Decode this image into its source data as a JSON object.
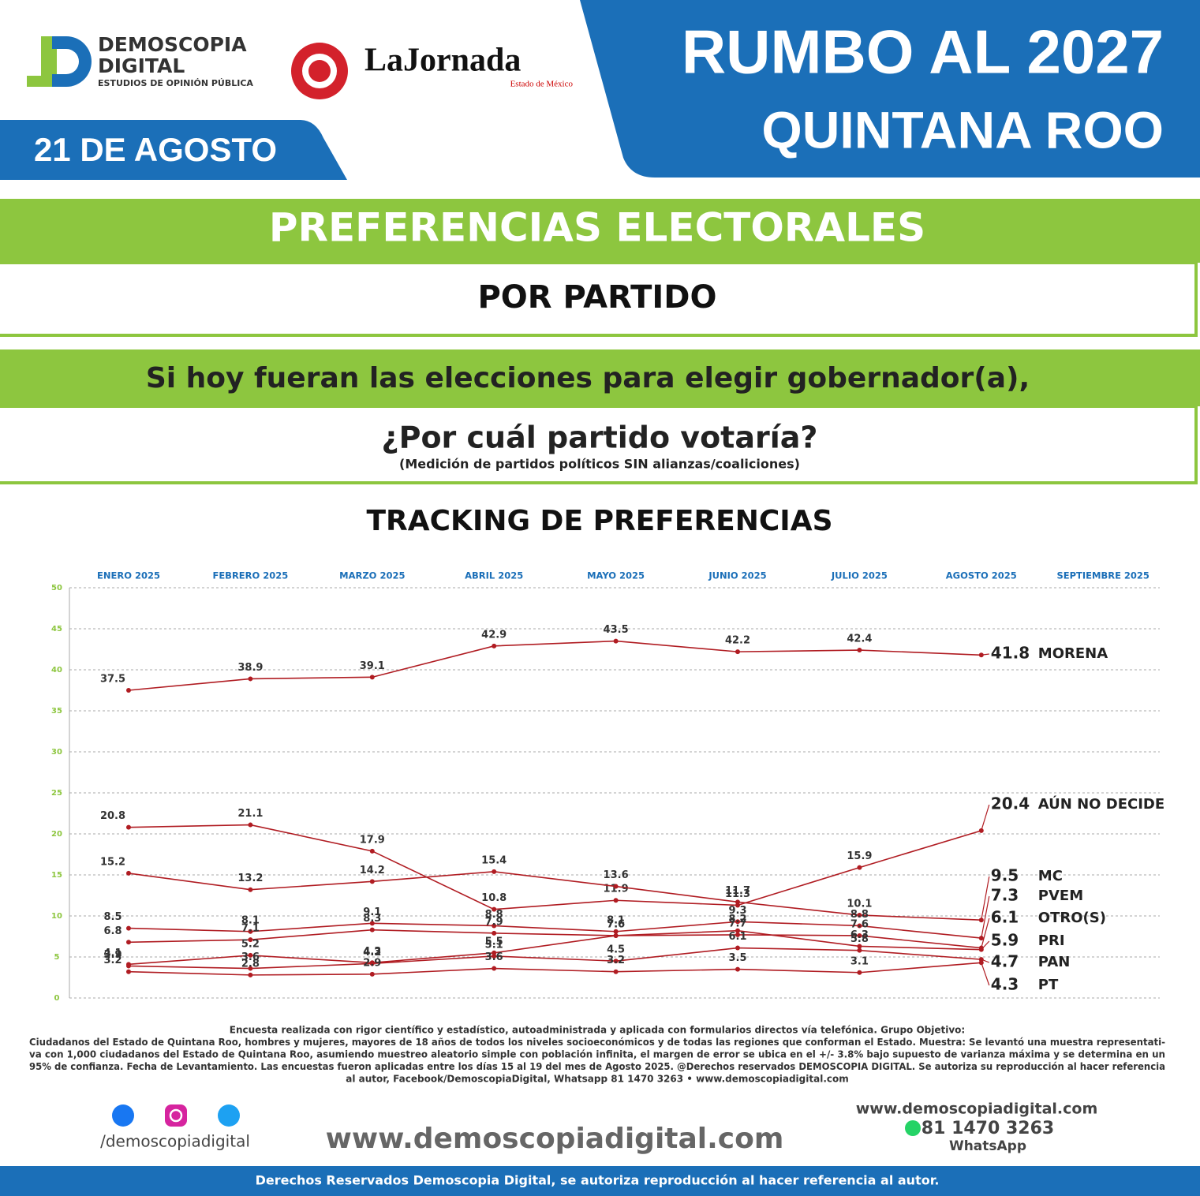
{
  "header": {
    "brand": "DEMOSCOPIA",
    "brand2": "DIGITAL",
    "brand_sub": "ESTUDIOS DE OPINIÓN PÚBLICA",
    "partner": "LaJornada",
    "partner_sub": "Estado de México",
    "title": "RUMBO AL 2027",
    "subtitle": "QUINTANA ROO",
    "date": "21 DE AGOSTO"
  },
  "banner": {
    "title": "PREFERENCIAS ELECTORALES",
    "subtitle": "POR PARTIDO",
    "question1": "Si hoy fueran las elecciones para elegir gobernador(a),",
    "question2": "¿Por cuál partido votaría?",
    "note": "(Medición de partidos políticos SIN alianzas/coaliciones)"
  },
  "chart_data": {
    "type": "line",
    "title": "TRACKING DE PREFERENCIAS",
    "categories": [
      "ENERO 2025",
      "FEBRERO 2025",
      "MARZO 2025",
      "ABRIL 2025",
      "MAYO 2025",
      "JUNIO 2025",
      "JULIO 2025",
      "AGOSTO 2025",
      "SEPTIEMBRE 2025"
    ],
    "series": [
      {
        "name": "MORENA",
        "color": "#b01c22",
        "values": [
          37.5,
          38.9,
          39.1,
          42.9,
          43.5,
          42.2,
          42.4,
          41.8,
          null
        ]
      },
      {
        "name": "AÚN NO DECIDE",
        "color": "#b01c22",
        "values": [
          20.8,
          21.1,
          17.9,
          10.8,
          11.9,
          11.3,
          15.9,
          20.4,
          null
        ]
      },
      {
        "name": "MC",
        "color": "#b01c22",
        "values": [
          15.2,
          13.2,
          14.2,
          15.4,
          13.6,
          11.7,
          10.1,
          9.5,
          null
        ]
      },
      {
        "name": "PVEM",
        "color": "#b01c22",
        "values": [
          8.5,
          8.1,
          9.1,
          8.8,
          8.1,
          9.3,
          8.8,
          7.3,
          null
        ]
      },
      {
        "name": "OTRO(S)",
        "color": "#b01c22",
        "values": [
          6.8,
          7.1,
          8.3,
          7.9,
          7.6,
          7.7,
          7.6,
          6.1,
          null
        ]
      },
      {
        "name": "PRI",
        "color": "#b01c22",
        "values": [
          4.1,
          5.2,
          4.3,
          5.5,
          7.6,
          8.2,
          6.3,
          5.9,
          null
        ]
      },
      {
        "name": "PAN",
        "color": "#b01c22",
        "values": [
          3.9,
          3.6,
          4.2,
          5.1,
          4.5,
          6.1,
          5.8,
          4.7,
          null
        ]
      },
      {
        "name": "PT",
        "color": "#b01c22",
        "values": [
          3.2,
          2.8,
          2.9,
          3.6,
          3.2,
          3.5,
          3.1,
          4.3,
          null
        ]
      }
    ],
    "ylim": [
      0,
      50
    ],
    "yticks": [
      0,
      5,
      10,
      15,
      20,
      25,
      30,
      35,
      40,
      45,
      50
    ],
    "grid": true
  },
  "methodology": [
    "Encuesta realizada con rigor científico y estadístico, autoadministrada y aplicada con formularios directos vía telefónica. Grupo Objetivo:",
    "Ciudadanos del Estado de Quintana Roo, hombres y mujeres, mayores de 18 años de todos los niveles socioeconómicos y de todas las regiones que conforman el Estado. Muestra: Se levantó una muestra representati-",
    "va con 1,000 ciudadanos del Estado de Quintana Roo, asumiendo muestreo aleatorio simple con población infinita, el margen de error se ubica en el +/- 3.8% bajo supuesto de varianza máxima y se determina en un",
    "95% de confianza. Fecha de Levantamiento. Las encuestas fueron aplicadas entre los días 15 al 19 del mes de Agosto 2025. @Derechos reservados DEMOSCOPIA DIGITAL. Se autoriza su reproducción al hacer referencia",
    "al autor, Facebook/DemoscopiaDigital, Whatsapp 81 1470 3263 • www.demoscopiadigital.com"
  ],
  "contact": {
    "social": "/demoscopiadigital",
    "website": "www.demoscopiadigital.com",
    "website2": "www.demoscopiadigital.com",
    "phone": "81 1470 3263",
    "phone_label": "WhatsApp"
  },
  "footer": "Derechos Reservados Demoscopia Digital, se autoriza reproducción al hacer referencia al autor."
}
